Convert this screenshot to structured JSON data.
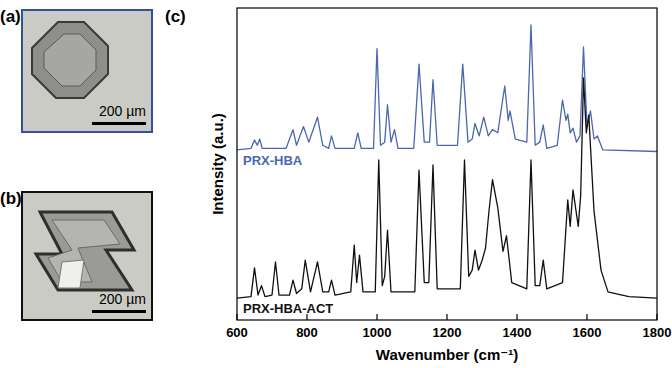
{
  "chart_data": {
    "type": "line",
    "panel_label": "(c)",
    "xlabel": "Wavenumber (cm⁻¹)",
    "ylabel": "Intensity (a.u.)",
    "xlim": [
      600,
      1800
    ],
    "xticks": [
      600,
      800,
      1000,
      1200,
      1400,
      1600,
      1800
    ],
    "ylim": [
      0,
      100
    ],
    "yticks": [],
    "tick_labels": "x",
    "grid": false,
    "series": [
      {
        "name": "PRX-HBA",
        "color": "#4a68b0",
        "x": [
          600,
          640,
          650,
          658,
          665,
          672,
          740,
          760,
          770,
          790,
          805,
          830,
          845,
          862,
          870,
          880,
          935,
          945,
          955,
          990,
          1000,
          1010,
          1022,
          1030,
          1040,
          1050,
          1060,
          1105,
          1120,
          1135,
          1150,
          1160,
          1172,
          1230,
          1245,
          1260,
          1272,
          1280,
          1292,
          1305,
          1318,
          1330,
          1345,
          1365,
          1375,
          1380,
          1395,
          1428,
          1440,
          1452,
          1465,
          1475,
          1485,
          1515,
          1530,
          1540,
          1545,
          1552,
          1560,
          1570,
          1580,
          1590,
          1600,
          1610,
          1620,
          1630,
          1645,
          1800
        ],
        "values": [
          54.5,
          55,
          57.7,
          56,
          58,
          55,
          55,
          61,
          56,
          62,
          57,
          65,
          56,
          55,
          59,
          55,
          55,
          60,
          55,
          55,
          87,
          56,
          57,
          69,
          57,
          61,
          55,
          55,
          82,
          57,
          57,
          77,
          56,
          56,
          82,
          57,
          58,
          63,
          59,
          65,
          59,
          61,
          60,
          75,
          64,
          67,
          58,
          57,
          94.6,
          56,
          57,
          62.5,
          55,
          56,
          70.5,
          64,
          66,
          60,
          61.5,
          57,
          59,
          87.5,
          62,
          67,
          58,
          59,
          54.5,
          54
        ]
      },
      {
        "name": "PRX-HBA-ACT",
        "color": "#111111",
        "x": [
          600,
          640,
          650,
          660,
          670,
          680,
          700,
          710,
          720,
          750,
          760,
          770,
          785,
          795,
          810,
          830,
          845,
          862,
          870,
          880,
          925,
          935,
          942,
          950,
          960,
          995,
          1005,
          1015,
          1022,
          1030,
          1040,
          1108,
          1120,
          1135,
          1148,
          1160,
          1172,
          1238,
          1250,
          1262,
          1272,
          1280,
          1290,
          1300,
          1310,
          1320,
          1330,
          1345,
          1360,
          1370,
          1385,
          1428,
          1440,
          1452,
          1465,
          1475,
          1485,
          1530,
          1545,
          1552,
          1560,
          1575,
          1582,
          1590,
          1598,
          1605,
          1620,
          1640,
          1660,
          1700,
          1720,
          1800
        ],
        "values": [
          7,
          7.5,
          16.7,
          8,
          11,
          7.5,
          8,
          18.6,
          8,
          8,
          12.8,
          8.5,
          10,
          19.2,
          9,
          18.6,
          9,
          9,
          12.8,
          8,
          9,
          24,
          12,
          20.8,
          9,
          9,
          51.3,
          11,
          14,
          28.8,
          9,
          9,
          48,
          12,
          12,
          49.7,
          10,
          10,
          51.3,
          14,
          16,
          22.4,
          16,
          19,
          23,
          35,
          45,
          36,
          22,
          27,
          12,
          10,
          51.3,
          11,
          11,
          19.2,
          10,
          12,
          38.5,
          30,
          41.7,
          30,
          40,
          77.6,
          60,
          65.7,
          35,
          16,
          9,
          8,
          7.5,
          7
        ]
      }
    ]
  },
  "images": [
    {
      "label": "(a)",
      "scale_bar": "200 µm"
    },
    {
      "label": "(b)",
      "scale_bar": "200 µm"
    }
  ]
}
